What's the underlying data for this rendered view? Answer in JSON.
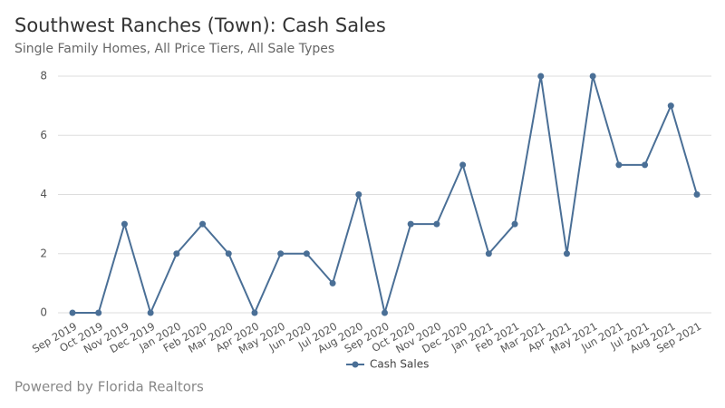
{
  "chart_data": {
    "type": "line",
    "title": "Southwest Ranches (Town): Cash Sales",
    "subtitle": "Single Family Homes, All Price Tiers, All Sale Types",
    "categories": [
      "Sep 2019",
      "Oct 2019",
      "Nov 2019",
      "Dec 2019",
      "Jan 2020",
      "Feb 2020",
      "Mar 2020",
      "Apr 2020",
      "May 2020",
      "Jun 2020",
      "Jul 2020",
      "Aug 2020",
      "Sep 2020",
      "Oct 2020",
      "Nov 2020",
      "Dec 2020",
      "Jan 2021",
      "Feb 2021",
      "Mar 2021",
      "Apr 2021",
      "May 2021",
      "Jun 2021",
      "Jul 2021",
      "Aug 2021",
      "Sep 2021"
    ],
    "series": [
      {
        "name": "Cash Sales",
        "color": "#4a6f96",
        "values": [
          0,
          0,
          3,
          0,
          2,
          3,
          2,
          0,
          2,
          2,
          1,
          4,
          0,
          3,
          3,
          5,
          2,
          3,
          8,
          2,
          8,
          5,
          5,
          7,
          4
        ]
      }
    ],
    "ylim": [
      0,
      8
    ],
    "yticks": [
      0,
      2,
      4,
      6,
      8
    ],
    "grid": true,
    "legend": "bottom"
  },
  "footer": "Powered by Florida Realtors"
}
